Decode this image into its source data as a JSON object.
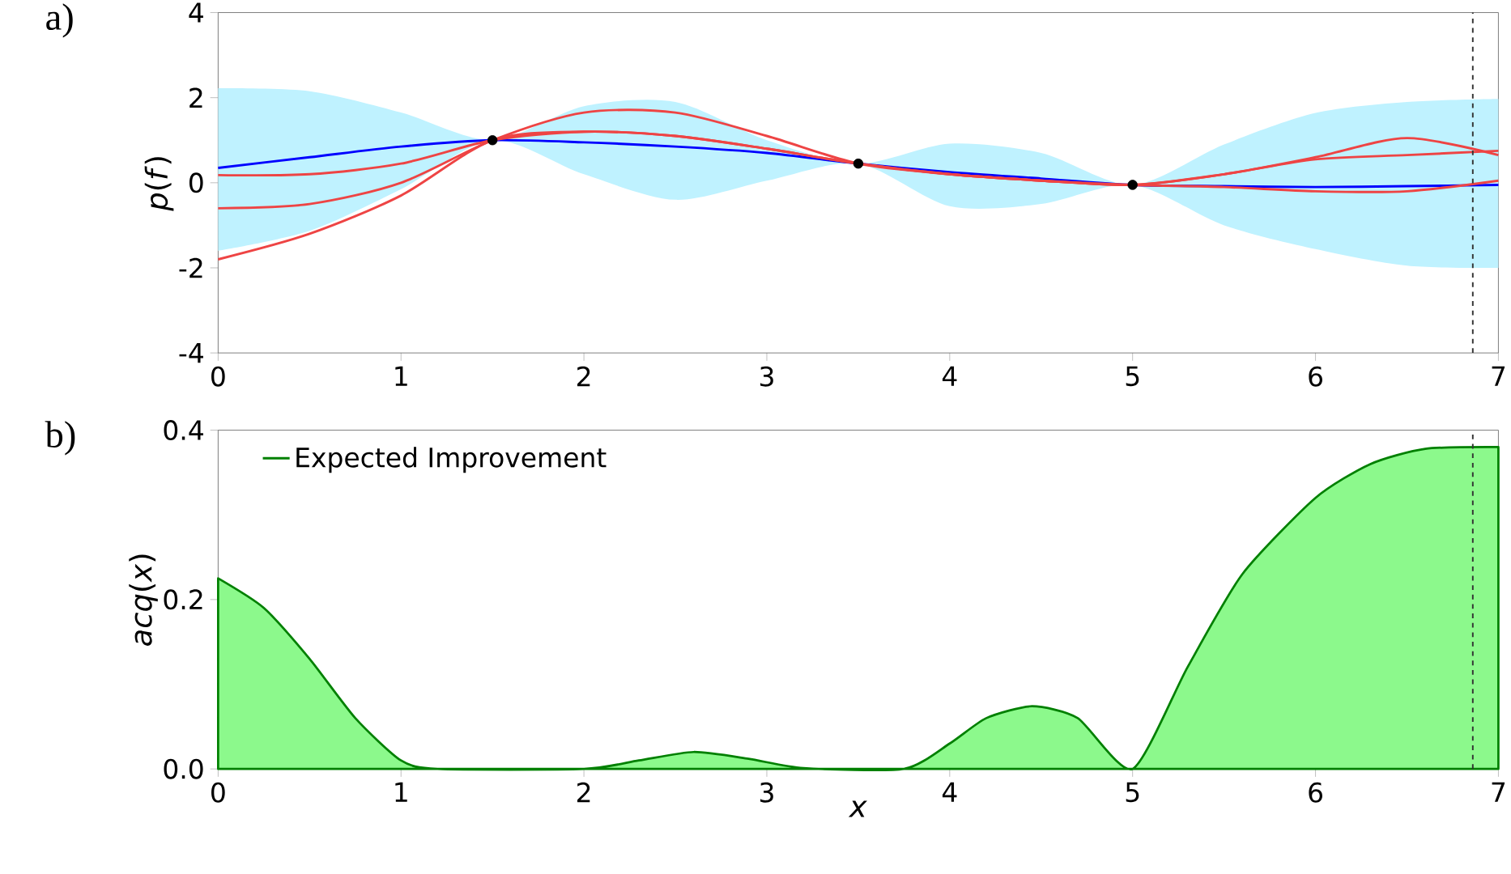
{
  "chart_data": [
    {
      "type": "line",
      "ylabel": "*p*(*f*)",
      "annotations": [
        "a)"
      ],
      "xlim": [
        0,
        7
      ],
      "ylim": [
        -4,
        4
      ],
      "xticks": [
        0,
        1,
        2,
        3,
        4,
        5,
        6,
        7
      ],
      "yticks": [
        -4,
        -2,
        0,
        2,
        4
      ],
      "series": [
        {
          "color": "#0000ff",
          "x": [
            0,
            0.5,
            1,
            1.5,
            2,
            2.5,
            3,
            3.5,
            4,
            4.5,
            5,
            5.5,
            6,
            6.5,
            7
          ],
          "values": [
            0.35,
            0.6,
            0.85,
            1.0,
            0.95,
            0.85,
            0.7,
            0.45,
            0.25,
            0.1,
            -0.05,
            -0.08,
            -0.1,
            -0.08,
            -0.05
          ],
          "upper": [
            2.22,
            2.15,
            1.65,
            1.0,
            1.8,
            1.9,
            1.0,
            0.45,
            0.92,
            0.7,
            -0.05,
            0.9,
            1.64,
            1.9,
            1.97
          ],
          "lower": [
            -1.6,
            -1.13,
            -0.15,
            1.0,
            0.2,
            -0.4,
            0.05,
            0.45,
            -0.55,
            -0.5,
            -0.05,
            -1.0,
            -1.56,
            -1.95,
            -2.0
          ]
        },
        {
          "color": "#ee4444",
          "x": [
            0,
            0.5,
            1,
            1.5,
            2,
            2.5,
            3,
            3.5,
            4,
            4.5,
            5,
            5.5,
            6,
            6.5,
            7
          ],
          "values": [
            0.18,
            0.2,
            0.45,
            1.0,
            1.2,
            1.1,
            0.8,
            0.45,
            0.2,
            0.05,
            -0.05,
            0.2,
            0.6,
            1.05,
            0.65
          ]
        },
        {
          "color": "#ee4444",
          "x": [
            0,
            0.5,
            1,
            1.5,
            2,
            2.5,
            3,
            3.5,
            4,
            4.5,
            5,
            5.5,
            6,
            6.5,
            7
          ],
          "values": [
            -0.6,
            -0.5,
            0.0,
            1.0,
            1.65,
            1.65,
            1.1,
            0.45,
            0.2,
            0.05,
            -0.05,
            0.2,
            0.55,
            0.65,
            0.75
          ]
        },
        {
          "color": "#ee4444",
          "x": [
            0,
            0.5,
            1,
            1.5,
            2,
            2.5,
            3,
            3.5,
            4,
            4.5,
            5,
            5.5,
            6,
            6.5,
            7
          ],
          "values": [
            -1.8,
            -1.2,
            -0.3,
            1.0,
            1.2,
            1.1,
            0.8,
            0.45,
            0.2,
            0.05,
            -0.05,
            -0.1,
            -0.2,
            -0.2,
            0.05
          ]
        },
        {
          "type": "scatter",
          "marker": "circle",
          "color": "#000000",
          "x": [
            1.5,
            3.5,
            5
          ],
          "values": [
            1.0,
            0.45,
            -0.05
          ]
        }
      ],
      "ref_lines": [
        {
          "axis": "x",
          "value": 6.86,
          "color": "#333333",
          "line_style": "dashed"
        }
      ]
    },
    {
      "type": "area",
      "xlabel": "*x*",
      "ylabel": "*acq*(*x*)",
      "annotations": [
        "b)"
      ],
      "legend": "top left",
      "xlim": [
        0,
        7
      ],
      "ylim": [
        0,
        0.4
      ],
      "xticks": [
        0,
        1,
        2,
        3,
        4,
        5,
        6,
        7
      ],
      "yticks": [
        {
          "value": 0,
          "label": "0.0"
        },
        {
          "value": 0.2,
          "label": "0.2"
        },
        {
          "value": 0.4,
          "label": "0.4"
        }
      ],
      "series": [
        {
          "name": "Expected Improvement",
          "color": "#008000",
          "x": [
            0,
            0.25,
            0.5,
            0.75,
            1.0,
            1.2,
            2.0,
            2.3,
            2.6,
            2.9,
            3.2,
            3.75,
            4.0,
            4.2,
            4.45,
            4.7,
            5.0,
            5.3,
            5.6,
            6.0,
            6.3,
            6.6,
            7.0
          ],
          "values": [
            0.225,
            0.19,
            0.13,
            0.06,
            0.01,
            0.0,
            0.0,
            0.01,
            0.02,
            0.012,
            0.001,
            0.0,
            0.03,
            0.06,
            0.074,
            0.06,
            0.0,
            0.12,
            0.23,
            0.32,
            0.36,
            0.378,
            0.38
          ]
        }
      ],
      "ref_lines": [
        {
          "axis": "x",
          "value": 6.86,
          "color": "#333333",
          "line_style": "dashed"
        }
      ]
    }
  ]
}
